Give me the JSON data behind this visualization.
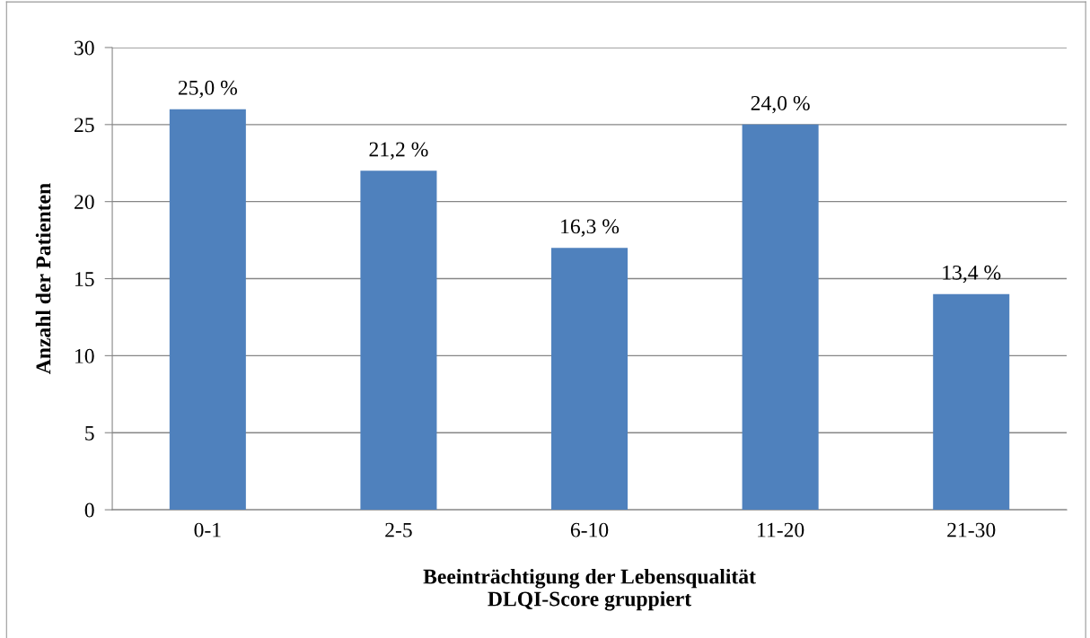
{
  "chart_data": {
    "type": "bar",
    "xlabel": "Beeinträchtigung der Lebensqualität\nDLQI-Score gruppiert",
    "ylabel": "Anzahl der Patienten",
    "categories": [
      "0-1",
      "2-5",
      "6-10",
      "11-20",
      "21-30"
    ],
    "values": [
      26,
      22,
      17,
      25,
      14
    ],
    "annotations": [
      {
        "text": "25,0 %",
        "x": "0-1",
        "y": 26
      },
      {
        "text": "21,2 %",
        "x": "2-5",
        "y": 22
      },
      {
        "text": "16,3 %",
        "x": "6-10",
        "y": 17
      },
      {
        "text": "24,0 %",
        "x": "11-20",
        "y": 25
      },
      {
        "text": "13,4 %",
        "x": "21-30",
        "y": 14
      }
    ],
    "color": "#4f81bd",
    "ylim": [
      0,
      30
    ],
    "yticks": [
      0,
      5,
      10,
      15,
      20,
      25,
      30
    ],
    "grid": "y",
    "legend": false
  }
}
